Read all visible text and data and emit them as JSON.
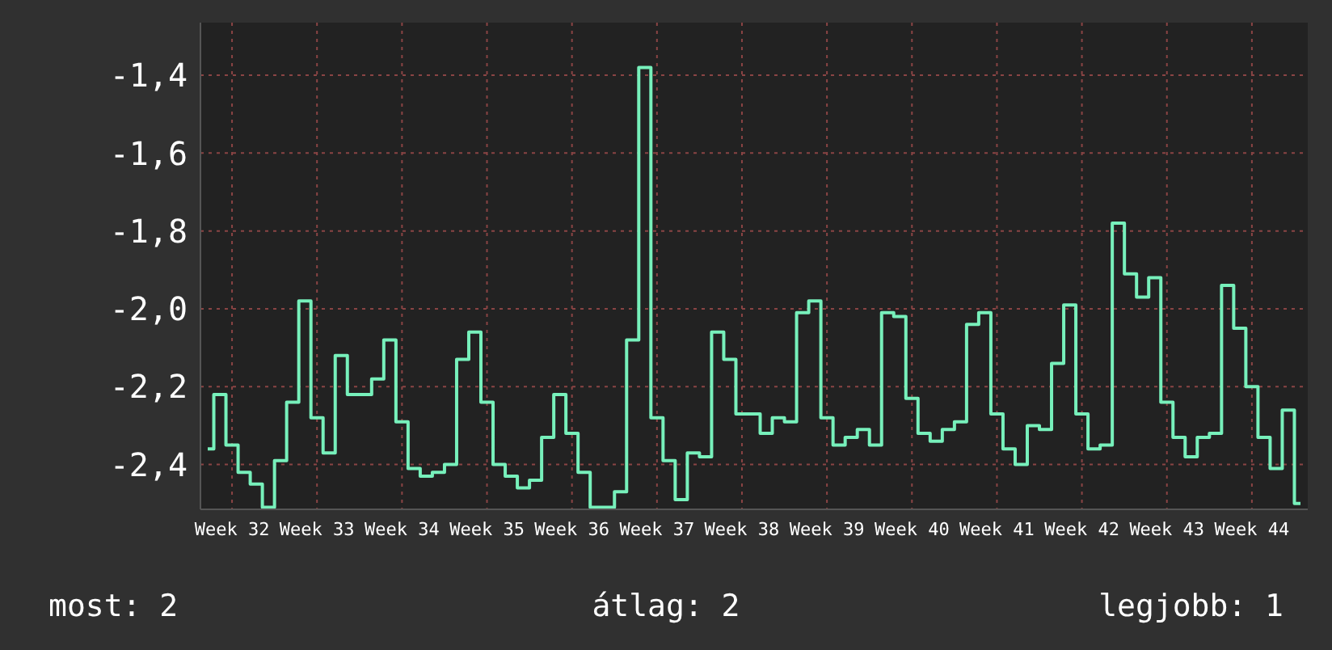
{
  "chart_data": {
    "type": "step",
    "categories": [
      null,
      null,
      "Week 32",
      null,
      null,
      null,
      null,
      null,
      null,
      "Week 33",
      null,
      null,
      null,
      null,
      null,
      null,
      "Week 34",
      null,
      null,
      null,
      null,
      null,
      null,
      "Week 35",
      null,
      null,
      null,
      null,
      null,
      null,
      "Week 36",
      null,
      null,
      null,
      null,
      null,
      null,
      "Week 37",
      null,
      null,
      null,
      null,
      null,
      null,
      "Week 38",
      null,
      null,
      null,
      null,
      null,
      null,
      "Week 39",
      null,
      null,
      null,
      null,
      null,
      null,
      "Week 40",
      null,
      null,
      null,
      null,
      null,
      null,
      "Week 41",
      null,
      null,
      null,
      null,
      null,
      null,
      "Week 42",
      null,
      null,
      null,
      null,
      null,
      null,
      "Week 43",
      null,
      null,
      null,
      null,
      null,
      null,
      "Week 44",
      null,
      null,
      null,
      null
    ],
    "series": [
      {
        "color": "#77f0bb",
        "values": [
          -2.36,
          -2.22,
          -2.35,
          -2.42,
          -2.45,
          -2.51,
          -2.39,
          -2.24,
          -1.98,
          -2.28,
          -2.37,
          -2.12,
          -2.22,
          -2.22,
          -2.18,
          -2.08,
          -2.29,
          -2.41,
          -2.43,
          -2.42,
          -2.4,
          -2.13,
          -2.06,
          -2.24,
          -2.4,
          -2.43,
          -2.46,
          -2.44,
          -2.33,
          -2.22,
          -2.32,
          -2.42,
          -2.51,
          -2.51,
          -2.47,
          -2.08,
          -1.38,
          -2.28,
          -2.39,
          -2.49,
          -2.37,
          -2.38,
          -2.06,
          -2.13,
          -2.27,
          -2.27,
          -2.32,
          -2.28,
          -2.29,
          -2.01,
          -1.98,
          -2.28,
          -2.35,
          -2.33,
          -2.31,
          -2.35,
          -2.01,
          -2.02,
          -2.23,
          -2.32,
          -2.34,
          -2.31,
          -2.29,
          -2.04,
          -2.01,
          -2.27,
          -2.36,
          -2.4,
          -2.3,
          -2.31,
          -2.14,
          -1.99,
          -2.27,
          -2.36,
          -2.35,
          -1.78,
          -1.91,
          -1.97,
          -1.92,
          -2.24,
          -2.33,
          -2.38,
          -2.33,
          -2.32,
          -1.94,
          -2.05,
          -2.2,
          -2.33,
          -2.41,
          -2.26,
          -2.5
        ]
      }
    ],
    "ylim": [
      -2.515,
      -1.265
    ],
    "yticks": [
      {
        "value": -2.4,
        "label": "-2,4"
      },
      {
        "value": -2.2,
        "label": "-2,2"
      },
      {
        "value": -2.0,
        "label": "-2,0"
      },
      {
        "value": -1.8,
        "label": "-1,8"
      },
      {
        "value": -1.6,
        "label": "-1,6"
      },
      {
        "value": -1.4,
        "label": "-1,4"
      }
    ],
    "grid": true,
    "annotations": [
      "most: 2",
      "átlag: 2",
      "legjobb: 1"
    ]
  }
}
